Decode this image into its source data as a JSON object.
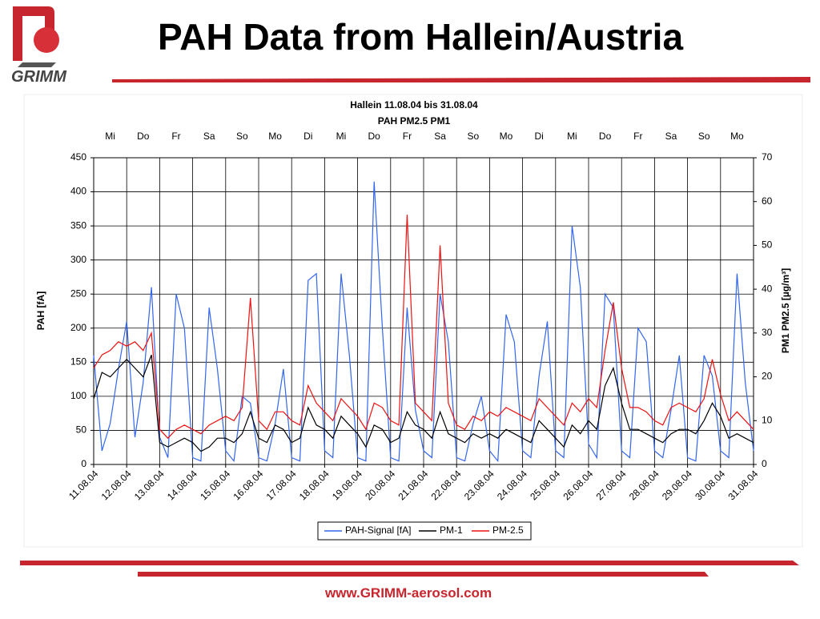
{
  "header": {
    "title": "PAH Data from Hallein/Austria",
    "logo": "GRIMM"
  },
  "footer": {
    "url": "www.GRIMM-aerosol.com"
  },
  "chart_data": {
    "type": "line",
    "title": "Hallein 11.08.04 bis 31.08.04",
    "subtitle": "PAH PM2.5 PM1",
    "y_label": "PAH [fA]",
    "y2_label": "PM1  PM2.5 [µg/m³]",
    "weekdays": [
      "Mi",
      "Do",
      "Fr",
      "Sa",
      "So",
      "Mo",
      "Di",
      "Mi",
      "Do",
      "Fr",
      "Sa",
      "So",
      "Mo",
      "Di",
      "Mi",
      "Do",
      "Fr",
      "Sa",
      "So",
      "Mo"
    ],
    "xlim": [
      0,
      20
    ],
    "xticks": [
      {
        "value": 0,
        "label": "11.08.04"
      },
      {
        "value": 1,
        "label": "12.08.04"
      },
      {
        "value": 2,
        "label": "13.08.04"
      },
      {
        "value": 3,
        "label": "14.08.04"
      },
      {
        "value": 4,
        "label": "15.08.04"
      },
      {
        "value": 5,
        "label": "16.08.04"
      },
      {
        "value": 6,
        "label": "17.08.04"
      },
      {
        "value": 7,
        "label": "18.08.04"
      },
      {
        "value": 8,
        "label": "19.08.04"
      },
      {
        "value": 9,
        "label": "20.08.04"
      },
      {
        "value": 10,
        "label": "21.08.04"
      },
      {
        "value": 11,
        "label": "22.08.04"
      },
      {
        "value": 12,
        "label": "23.08.04"
      },
      {
        "value": 13,
        "label": "24.08.04"
      },
      {
        "value": 14,
        "label": "25.08.04"
      },
      {
        "value": 15,
        "label": "26.08.04"
      },
      {
        "value": 16,
        "label": "27.08.04"
      },
      {
        "value": 17,
        "label": "28.08.04"
      },
      {
        "value": 18,
        "label": "29.08.04"
      },
      {
        "value": 19,
        "label": "30.08.04"
      },
      {
        "value": 20,
        "label": "31.08.04"
      }
    ],
    "ylim": [
      0,
      450
    ],
    "yticks": [
      0,
      50,
      100,
      150,
      200,
      250,
      300,
      350,
      400,
      450
    ],
    "y2lim": [
      0,
      70
    ],
    "y2ticks": [
      0,
      10,
      20,
      30,
      40,
      50,
      60,
      70
    ],
    "grid": true,
    "legend": "bottom",
    "x": [
      0,
      0.25,
      0.5,
      0.75,
      1,
      1.25,
      1.5,
      1.75,
      2,
      2.25,
      2.5,
      2.75,
      3,
      3.25,
      3.5,
      3.75,
      4,
      4.25,
      4.5,
      4.75,
      5,
      5.25,
      5.5,
      5.75,
      6,
      6.25,
      6.5,
      6.75,
      7,
      7.25,
      7.5,
      7.75,
      8,
      8.25,
      8.5,
      8.75,
      9,
      9.25,
      9.5,
      9.75,
      10,
      10.25,
      10.5,
      10.75,
      11,
      11.25,
      11.5,
      11.75,
      12,
      12.25,
      12.5,
      12.75,
      13,
      13.25,
      13.5,
      13.75,
      14,
      14.25,
      14.5,
      14.75,
      15,
      15.25,
      15.5,
      15.75,
      16,
      16.25,
      16.5,
      16.75,
      17,
      17.25,
      17.5,
      17.75,
      18,
      18.25,
      18.5,
      18.75,
      19,
      19.25,
      19.5,
      19.75,
      20
    ],
    "series": [
      {
        "name": "PAH-Signal [fA]",
        "color": "#3366ee",
        "axis": "y",
        "values": [
          160,
          20,
          60,
          140,
          210,
          40,
          120,
          260,
          40,
          10,
          250,
          200,
          10,
          5,
          230,
          140,
          20,
          5,
          100,
          90,
          10,
          5,
          60,
          140,
          10,
          5,
          270,
          280,
          20,
          10,
          280,
          160,
          10,
          5,
          415,
          200,
          10,
          5,
          230,
          80,
          20,
          10,
          250,
          180,
          10,
          5,
          60,
          100,
          20,
          5,
          220,
          180,
          20,
          10,
          130,
          210,
          20,
          10,
          350,
          260,
          30,
          10,
          250,
          230,
          20,
          10,
          200,
          180,
          20,
          10,
          80,
          160,
          10,
          5,
          160,
          130,
          20,
          10,
          280,
          120,
          20
        ]
      },
      {
        "name": "PM-1",
        "color": "#000000",
        "axis": "y2",
        "values": [
          15,
          21,
          20,
          22,
          24,
          22,
          20,
          25,
          5,
          4,
          5,
          6,
          5,
          3,
          4,
          6,
          6,
          5,
          7,
          12,
          6,
          5,
          9,
          8,
          5,
          6,
          13,
          9,
          8,
          6,
          11,
          9,
          7,
          4,
          9,
          8,
          5,
          6,
          12,
          9,
          8,
          6,
          12,
          7,
          6,
          5,
          7,
          6,
          7,
          6,
          8,
          7,
          6,
          5,
          10,
          8,
          6,
          4,
          9,
          7,
          10,
          8,
          18,
          22,
          14,
          8,
          8,
          7,
          6,
          5,
          7,
          8,
          8,
          7,
          10,
          14,
          11,
          6,
          7,
          6,
          5
        ]
      },
      {
        "name": "PM-2.5",
        "color": "#ee1111",
        "axis": "y2",
        "values": [
          22,
          25,
          26,
          28,
          27,
          28,
          26,
          30,
          8,
          6,
          8,
          9,
          8,
          7,
          9,
          10,
          11,
          10,
          13,
          38,
          10,
          8,
          12,
          12,
          10,
          9,
          18,
          14,
          12,
          10,
          15,
          13,
          11,
          8,
          14,
          13,
          10,
          9,
          57,
          14,
          12,
          10,
          50,
          14,
          9,
          8,
          11,
          10,
          12,
          11,
          13,
          12,
          11,
          10,
          15,
          13,
          11,
          9,
          14,
          12,
          15,
          13,
          26,
          37,
          22,
          13,
          13,
          12,
          10,
          9,
          13,
          14,
          13,
          12,
          15,
          24,
          16,
          10,
          12,
          10,
          8
        ]
      }
    ]
  }
}
